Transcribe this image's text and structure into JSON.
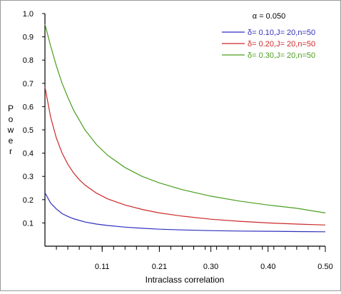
{
  "chart_data": {
    "type": "line",
    "title": "",
    "xlabel": "Intraclass correlation",
    "ylabel": "Power",
    "annotation": "α = 0.050",
    "xlim": [
      0.01,
      0.5
    ],
    "ylim": [
      0.0,
      1.0
    ],
    "x_ticks": [
      0.11,
      0.21,
      0.3,
      0.4,
      0.5
    ],
    "x_tick_labels": [
      "0.11",
      "0.21",
      "0.30",
      "0.40",
      "0.50"
    ],
    "y_ticks": [
      0.1,
      0.2,
      0.3,
      0.4,
      0.5,
      0.6,
      0.7,
      0.8,
      0.9,
      1.0
    ],
    "y_tick_labels": [
      "0.1",
      "0.2",
      "0.3",
      "0.4",
      "0.5",
      "0.6",
      "0.7",
      "0.8",
      "0.9",
      "1.0"
    ],
    "grid": false,
    "legend_position": "top-right",
    "series": [
      {
        "name": "δ= 0.10,J= 20,n=50",
        "color": "#2f2fbf",
        "x": [
          0.01,
          0.02,
          0.03,
          0.04,
          0.05,
          0.06,
          0.08,
          0.1,
          0.12,
          0.15,
          0.18,
          0.21,
          0.25,
          0.3,
          0.35,
          0.4,
          0.45,
          0.5
        ],
        "y": [
          0.23,
          0.185,
          0.16,
          0.14,
          0.128,
          0.118,
          0.104,
          0.095,
          0.089,
          0.082,
          0.077,
          0.073,
          0.07,
          0.067,
          0.065,
          0.064,
          0.063,
          0.062
        ]
      },
      {
        "name": "δ= 0.20,J= 20,n=50",
        "color": "#cc2929",
        "x": [
          0.01,
          0.02,
          0.03,
          0.04,
          0.05,
          0.06,
          0.07,
          0.08,
          0.1,
          0.12,
          0.15,
          0.18,
          0.21,
          0.25,
          0.3,
          0.35,
          0.4,
          0.45,
          0.5
        ],
        "y": [
          0.685,
          0.555,
          0.465,
          0.4,
          0.352,
          0.315,
          0.286,
          0.263,
          0.228,
          0.203,
          0.177,
          0.158,
          0.143,
          0.129,
          0.116,
          0.107,
          0.1,
          0.095,
          0.091
        ]
      },
      {
        "name": "δ= 0.30,J= 20,n=50",
        "color": "#4a9e1e",
        "x": [
          0.01,
          0.02,
          0.03,
          0.04,
          0.05,
          0.06,
          0.08,
          0.1,
          0.12,
          0.15,
          0.18,
          0.21,
          0.25,
          0.3,
          0.35,
          0.4,
          0.45,
          0.5
        ],
        "y": [
          0.955,
          0.86,
          0.775,
          0.7,
          0.64,
          0.585,
          0.5,
          0.437,
          0.39,
          0.338,
          0.3,
          0.272,
          0.243,
          0.215,
          0.194,
          0.177,
          0.163,
          0.143
        ]
      }
    ]
  }
}
